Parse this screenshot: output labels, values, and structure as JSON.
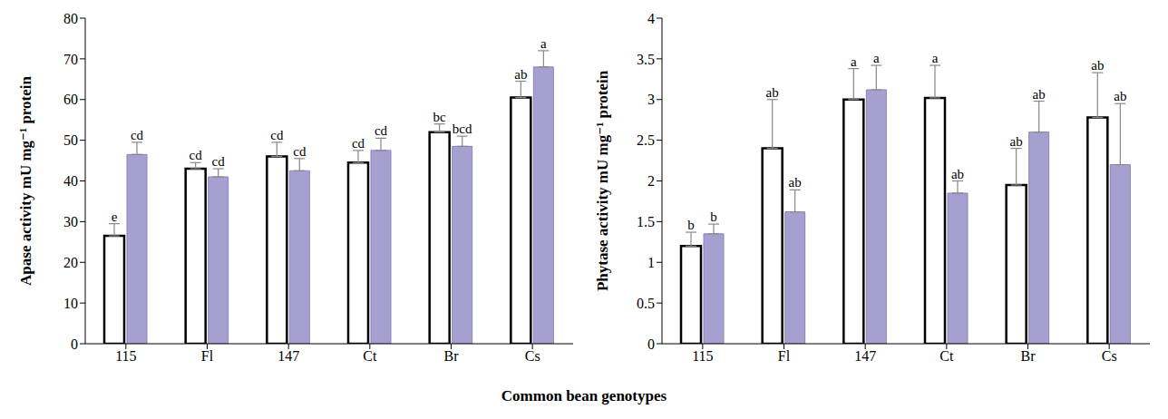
{
  "x_label": "Common bean genotypes",
  "chart_data": [
    {
      "type": "bar",
      "y_label": "Apase  activity mU mg⁻¹ protein",
      "categories": [
        "115",
        "Fl",
        "147",
        "Ct",
        "Br",
        "Cs"
      ],
      "ylim": [
        0,
        80
      ],
      "yticks": [
        0,
        10,
        20,
        30,
        40,
        50,
        60,
        70,
        80
      ],
      "grid": false,
      "series": [
        {
          "color": "#ffffff",
          "values": [
            26.5,
            43,
            46,
            44.5,
            52,
            60.5
          ],
          "errors": [
            3,
            1.5,
            3.5,
            3,
            2,
            4
          ],
          "letters": [
            "e",
            "cd",
            "cd",
            "cd",
            "bc",
            "ab"
          ]
        },
        {
          "color": "#a6a0d0",
          "values": [
            46.5,
            41,
            42.5,
            47.5,
            48.5,
            68
          ],
          "errors": [
            3,
            2,
            3,
            3,
            2.5,
            4
          ],
          "letters": [
            "cd",
            "cd",
            "cd",
            "cd",
            "bcd",
            "a"
          ]
        }
      ]
    },
    {
      "type": "bar",
      "y_label": "Phytase activity mU mg⁻¹ protein",
      "categories": [
        "115",
        "Fl",
        "147",
        "Ct",
        "Br",
        "Cs"
      ],
      "ylim": [
        0,
        4
      ],
      "yticks": [
        0,
        0.5,
        1,
        1.5,
        2,
        2.5,
        3,
        3.5,
        4
      ],
      "grid": false,
      "series": [
        {
          "color": "#ffffff",
          "values": [
            1.2,
            2.4,
            3.0,
            3.02,
            1.95,
            2.78
          ],
          "errors": [
            0.17,
            0.6,
            0.38,
            0.4,
            0.45,
            0.55
          ],
          "letters": [
            "b",
            "ab",
            "a",
            "a",
            "ab",
            "ab"
          ]
        },
        {
          "color": "#a6a0d0",
          "values": [
            1.35,
            1.62,
            3.12,
            1.85,
            2.6,
            2.2
          ],
          "errors": [
            0.12,
            0.27,
            0.3,
            0.15,
            0.38,
            0.75
          ],
          "letters": [
            "b",
            "ab",
            "a",
            "ab",
            "ab",
            "ab"
          ]
        }
      ]
    }
  ]
}
